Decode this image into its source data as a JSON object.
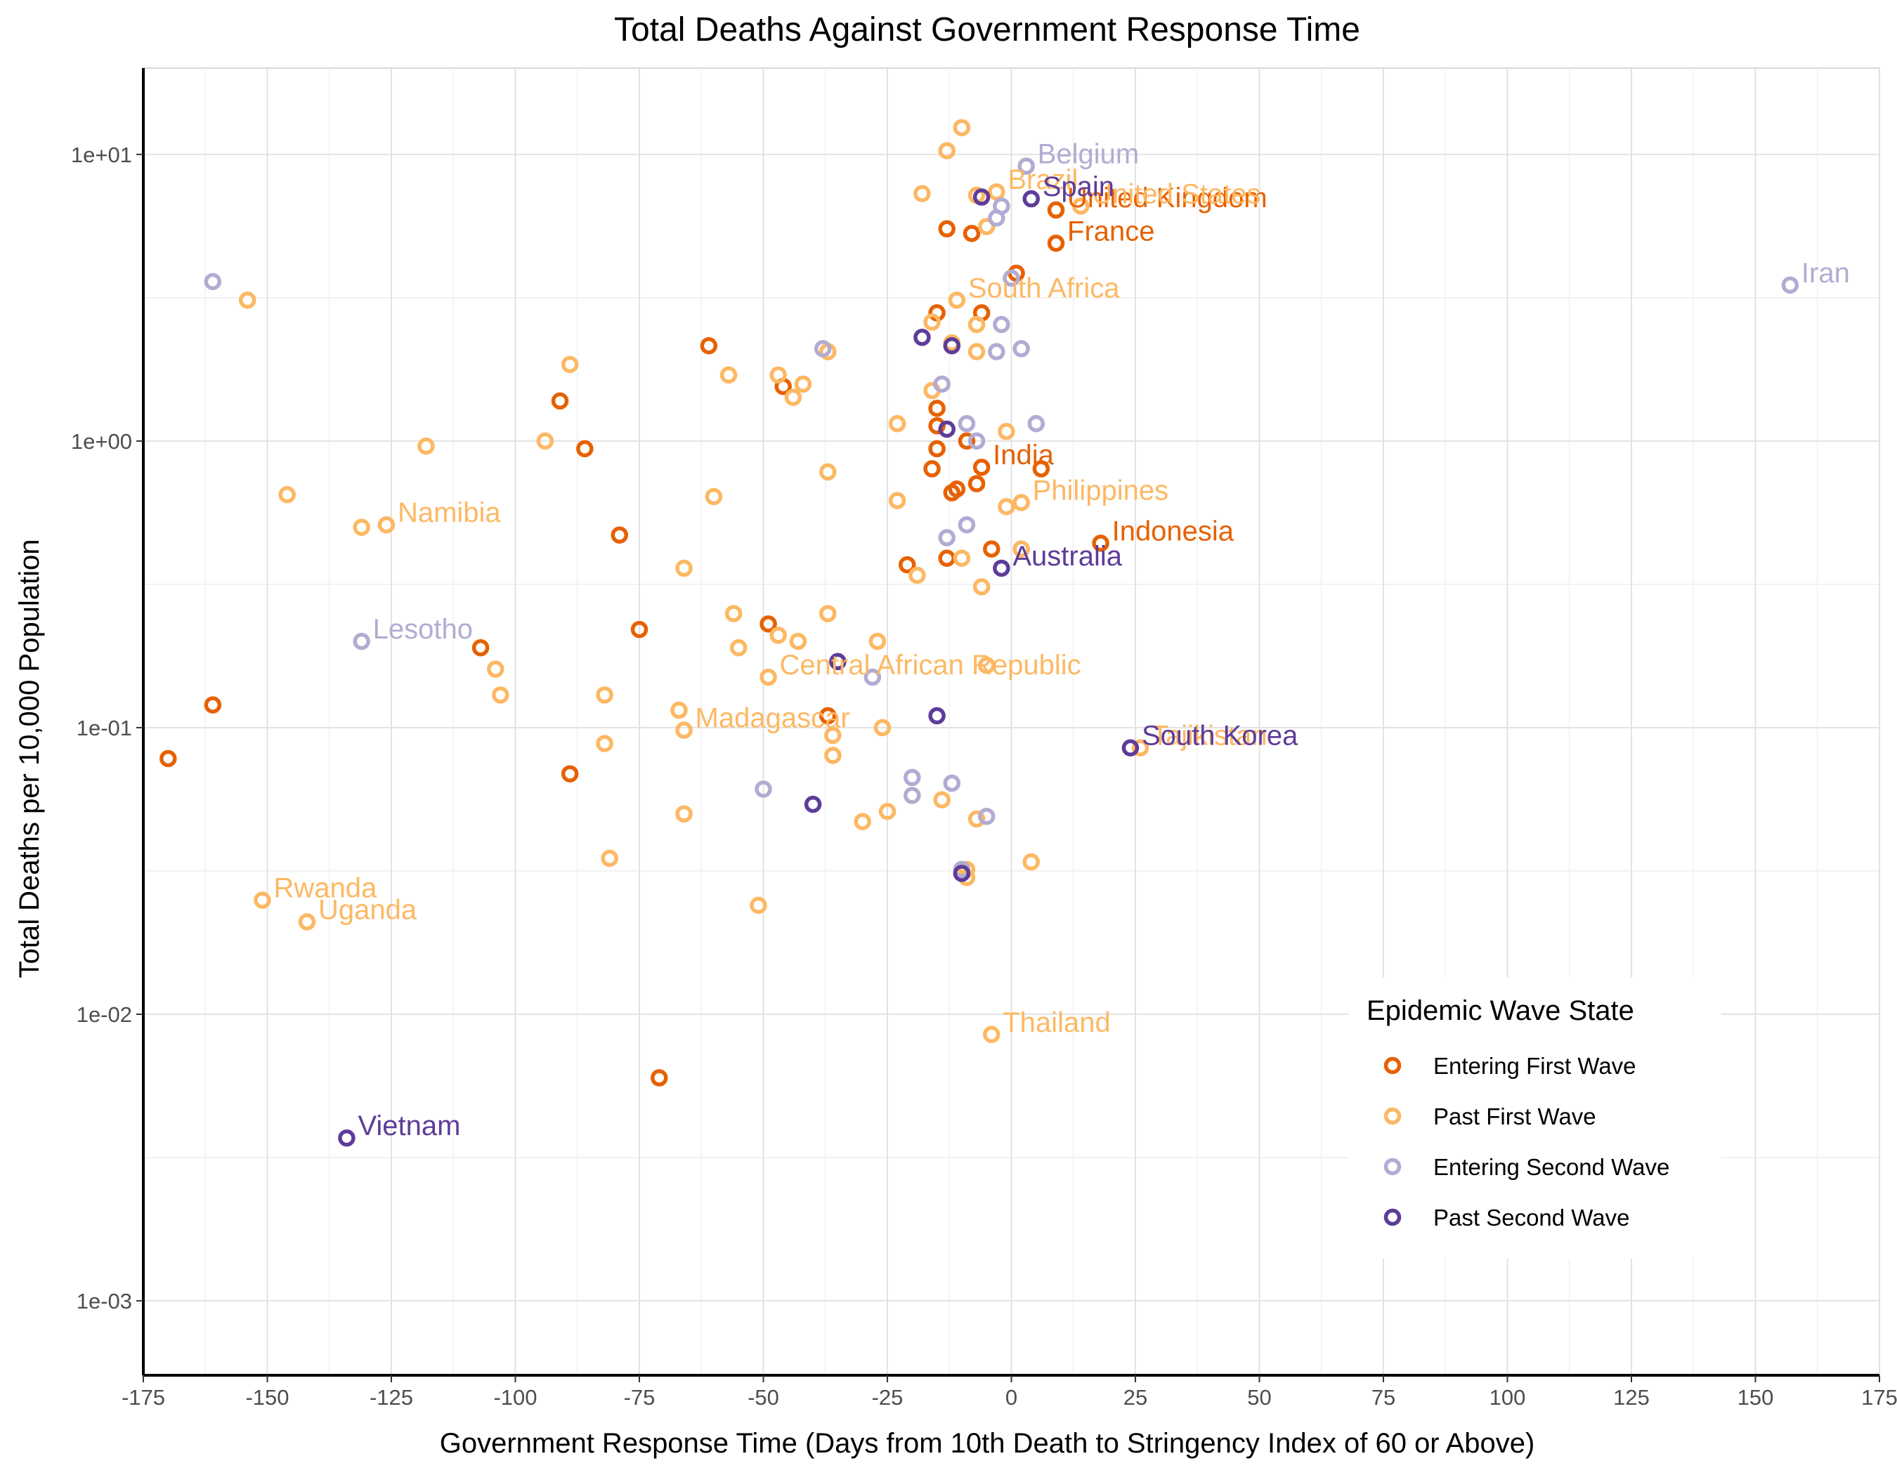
{
  "chart_data": {
    "type": "scatter",
    "title": "Total Deaths Against Government Response Time",
    "xlabel": "Government Response Time (Days from 10th Death to Stringency Index of 60 or Above)",
    "ylabel": "Total Deaths per 10,000 Population",
    "xlim": [
      -175,
      175
    ],
    "ylim": [
      0.00055,
      20
    ],
    "y_scale": "log10",
    "x_ticks": [
      -175,
      -150,
      -125,
      -100,
      -75,
      -50,
      -25,
      0,
      25,
      50,
      75,
      100,
      125,
      150,
      175
    ],
    "x_tick_labels": [
      "-175",
      "-150",
      "-125",
      "-100",
      "-75",
      "-50",
      "-25",
      "0",
      "25",
      "50",
      "75",
      "100",
      "125",
      "150",
      "175"
    ],
    "y_ticks": [
      0.001,
      0.01,
      0.1,
      1,
      10
    ],
    "y_tick_labels": [
      "1e-03",
      "1e-02",
      "1e-01",
      "1e+00",
      "1e+01"
    ],
    "grid": true,
    "legend": {
      "title": "Epidemic Wave State",
      "position": "bottom-right"
    },
    "series": [
      {
        "name": "Entering First Wave",
        "color": "#e66101",
        "points": [
          {
            "x": -170,
            "y": 0.078
          },
          {
            "x": -161,
            "y": 0.12
          },
          {
            "x": -107,
            "y": 0.19
          },
          {
            "x": -91,
            "y": 1.38
          },
          {
            "x": -89,
            "y": 0.069
          },
          {
            "x": -86,
            "y": 0.94
          },
          {
            "x": -79,
            "y": 0.47
          },
          {
            "x": -75,
            "y": 0.22
          },
          {
            "x": -71,
            "y": 0.006
          },
          {
            "x": -61,
            "y": 2.15
          },
          {
            "x": -49,
            "y": 0.23
          },
          {
            "x": -46,
            "y": 1.55
          },
          {
            "x": -37,
            "y": 0.11
          },
          {
            "x": -21,
            "y": 0.37
          },
          {
            "x": -16,
            "y": 0.8
          },
          {
            "x": -15,
            "y": 2.8
          },
          {
            "x": -15,
            "y": 1.3
          },
          {
            "x": -15,
            "y": 1.13
          },
          {
            "x": -15,
            "y": 0.94
          },
          {
            "x": -13,
            "y": 5.5
          },
          {
            "x": -13,
            "y": 0.39
          },
          {
            "x": -12,
            "y": 0.66
          },
          {
            "x": -11,
            "y": 0.68
          },
          {
            "x": -9,
            "y": 1.0
          },
          {
            "x": -8,
            "y": 5.3
          },
          {
            "x": -7,
            "y": 0.71
          },
          {
            "x": -6,
            "y": 2.8
          },
          {
            "x": -6,
            "y": 0.81,
            "label": "India"
          },
          {
            "x": -4,
            "y": 0.42
          },
          {
            "x": 1,
            "y": 3.85
          },
          {
            "x": 6,
            "y": 0.8
          },
          {
            "x": 9,
            "y": 6.4,
            "label": "United Kingdom"
          },
          {
            "x": 9,
            "y": 4.9,
            "label": "France"
          },
          {
            "x": 18,
            "y": 0.44,
            "label": "Indonesia"
          }
        ]
      },
      {
        "name": "Past First Wave",
        "color": "#fdb863",
        "points": [
          {
            "x": -154,
            "y": 3.1
          },
          {
            "x": -151,
            "y": 0.025,
            "label": "Rwanda"
          },
          {
            "x": -146,
            "y": 0.65
          },
          {
            "x": -142,
            "y": 0.021,
            "label": "Uganda"
          },
          {
            "x": -131,
            "y": 0.5
          },
          {
            "x": -126,
            "y": 0.51,
            "label": "Namibia"
          },
          {
            "x": -118,
            "y": 0.96
          },
          {
            "x": -104,
            "y": 0.16
          },
          {
            "x": -103,
            "y": 0.13
          },
          {
            "x": -94,
            "y": 1.0
          },
          {
            "x": -89,
            "y": 1.85
          },
          {
            "x": -82,
            "y": 0.13
          },
          {
            "x": -82,
            "y": 0.088
          },
          {
            "x": -81,
            "y": 0.035
          },
          {
            "x": -67,
            "y": 0.115
          },
          {
            "x": -66,
            "y": 0.098,
            "label": "Madagascar"
          },
          {
            "x": -66,
            "y": 0.36
          },
          {
            "x": -66,
            "y": 0.05
          },
          {
            "x": -60,
            "y": 0.64
          },
          {
            "x": -57,
            "y": 1.7
          },
          {
            "x": -56,
            "y": 0.25
          },
          {
            "x": -55,
            "y": 0.19
          },
          {
            "x": -51,
            "y": 0.024
          },
          {
            "x": -49,
            "y": 0.15,
            "label": "Central African Republic"
          },
          {
            "x": -47,
            "y": 1.7
          },
          {
            "x": -47,
            "y": 0.21
          },
          {
            "x": -44,
            "y": 1.42
          },
          {
            "x": -43,
            "y": 0.2
          },
          {
            "x": -42,
            "y": 1.58
          },
          {
            "x": -37,
            "y": 2.05
          },
          {
            "x": -37,
            "y": 0.78
          },
          {
            "x": -37,
            "y": 0.25
          },
          {
            "x": -36,
            "y": 0.094
          },
          {
            "x": -36,
            "y": 0.08
          },
          {
            "x": -30,
            "y": 0.047
          },
          {
            "x": -27,
            "y": 0.2
          },
          {
            "x": -26,
            "y": 0.1
          },
          {
            "x": -25,
            "y": 0.051
          },
          {
            "x": -23,
            "y": 1.15
          },
          {
            "x": -23,
            "y": 0.62
          },
          {
            "x": -19,
            "y": 0.34
          },
          {
            "x": -18,
            "y": 7.3
          },
          {
            "x": -16,
            "y": 2.6
          },
          {
            "x": -16,
            "y": 1.5
          },
          {
            "x": -14,
            "y": 0.056
          },
          {
            "x": -13,
            "y": 10.3
          },
          {
            "x": -12,
            "y": 2.2
          },
          {
            "x": -11,
            "y": 3.1,
            "label": "South Africa"
          },
          {
            "x": -10,
            "y": 12.4
          },
          {
            "x": -10,
            "y": 0.39
          },
          {
            "x": -9,
            "y": 0.032
          },
          {
            "x": -9,
            "y": 0.03
          },
          {
            "x": -7,
            "y": 7.2
          },
          {
            "x": -7,
            "y": 2.55
          },
          {
            "x": -7,
            "y": 2.05
          },
          {
            "x": -7,
            "y": 0.048
          },
          {
            "x": -6,
            "y": 0.31
          },
          {
            "x": -5,
            "y": 5.6
          },
          {
            "x": -5,
            "y": 0.165
          },
          {
            "x": -4,
            "y": 0.0085,
            "label": "Thailand"
          },
          {
            "x": -3,
            "y": 7.4,
            "label": "Brazil"
          },
          {
            "x": -1,
            "y": 1.08
          },
          {
            "x": -1,
            "y": 0.59
          },
          {
            "x": 2,
            "y": 0.61,
            "label": "Philippines"
          },
          {
            "x": 2,
            "y": 0.42
          },
          {
            "x": 4,
            "y": 0.034
          },
          {
            "x": 14,
            "y": 6.6,
            "label": "United States"
          },
          {
            "x": 26,
            "y": 0.085,
            "label": "Tajikistan"
          }
        ]
      },
      {
        "name": "Entering Second Wave",
        "color": "#b2abd2",
        "points": [
          {
            "x": -161,
            "y": 3.6
          },
          {
            "x": -131,
            "y": 0.2,
            "label": "Lesotho"
          },
          {
            "x": -50,
            "y": 0.061
          },
          {
            "x": -38,
            "y": 2.1
          },
          {
            "x": -35,
            "y": 0.17
          },
          {
            "x": -28,
            "y": 0.15
          },
          {
            "x": -20,
            "y": 0.067
          },
          {
            "x": -20,
            "y": 0.058
          },
          {
            "x": -14,
            "y": 1.58
          },
          {
            "x": -13,
            "y": 0.46
          },
          {
            "x": -12,
            "y": 0.064
          },
          {
            "x": -10,
            "y": 0.032
          },
          {
            "x": -9,
            "y": 1.15
          },
          {
            "x": -9,
            "y": 0.51
          },
          {
            "x": -7,
            "y": 1.0
          },
          {
            "x": -5,
            "y": 0.049
          },
          {
            "x": -3,
            "y": 6.0
          },
          {
            "x": -3,
            "y": 2.05
          },
          {
            "x": -2,
            "y": 6.6
          },
          {
            "x": -2,
            "y": 2.55
          },
          {
            "x": 0,
            "y": 3.7
          },
          {
            "x": 2,
            "y": 2.1
          },
          {
            "x": 3,
            "y": 9.1,
            "label": "Belgium"
          },
          {
            "x": 5,
            "y": 1.15
          },
          {
            "x": 157,
            "y": 3.5,
            "label": "Iran"
          }
        ]
      },
      {
        "name": "Past Second Wave",
        "color": "#5e3c99",
        "points": [
          {
            "x": -134,
            "y": 0.0037,
            "label": "Vietnam"
          },
          {
            "x": -40,
            "y": 0.054
          },
          {
            "x": -35,
            "y": 0.17
          },
          {
            "x": -18,
            "y": 2.3
          },
          {
            "x": -15,
            "y": 0.11
          },
          {
            "x": -13,
            "y": 1.1
          },
          {
            "x": -12,
            "y": 2.15
          },
          {
            "x": -10,
            "y": 0.031
          },
          {
            "x": -6,
            "y": 7.1
          },
          {
            "x": -2,
            "y": 0.36,
            "label": "Australia"
          },
          {
            "x": 4,
            "y": 7.0,
            "label": "Spain"
          },
          {
            "x": 24,
            "y": 0.085,
            "label": "South Korea"
          }
        ]
      }
    ]
  }
}
